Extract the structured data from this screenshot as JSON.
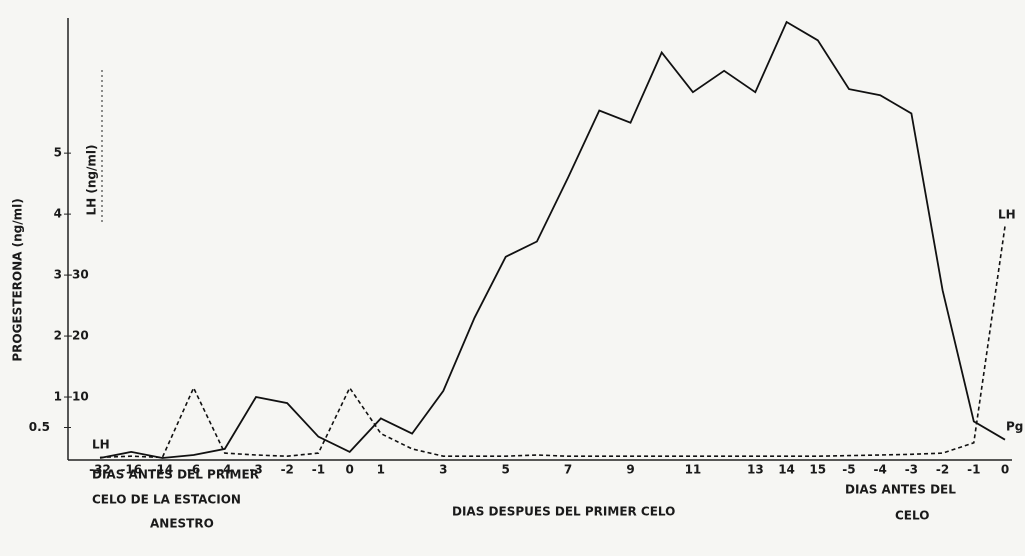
{
  "chart_data": {
    "type": "line",
    "y_label": "PROGESTERONA (ng/ml)",
    "y2_label": "LH (ng/ml)",
    "categories": [
      "-32",
      "-16",
      "-14",
      "-6",
      "-4",
      "-3",
      "-2",
      "-1",
      "0",
      "1",
      null,
      "3",
      null,
      "5",
      null,
      "7",
      null,
      "9",
      null,
      "11",
      null,
      "13",
      "14",
      "15",
      "-5",
      "-4",
      "-3",
      "-2",
      "-1",
      "0"
    ],
    "series": [
      {
        "name": "Pg",
        "color": "#111111",
        "dash": false,
        "values": [
          0,
          0.1,
          0,
          0.05,
          0.15,
          1.0,
          0.9,
          0.35,
          0.1,
          0.65,
          0.4,
          1.1,
          2.3,
          3.3,
          3.55,
          4.6,
          5.7,
          5.5,
          6.65,
          6.0,
          6.35,
          6.0,
          7.15,
          6.85,
          6.05,
          5.95,
          5.65,
          2.75,
          0.6,
          0.3
        ]
      },
      {
        "name": "LH",
        "color": "#111111",
        "dash": true,
        "axis": "y2",
        "values": [
          0.1,
          0.3,
          0.1,
          11.5,
          0.8,
          0.5,
          0.3,
          0.8,
          11.5,
          4,
          1.5,
          0.3,
          0.3,
          0.3,
          0.5,
          0.3,
          0.3,
          0.3,
          0.3,
          0.3,
          0.3,
          0.3,
          0.3,
          0.3,
          0.4,
          0.5,
          0.6,
          0.8,
          2.5,
          38
        ]
      }
    ],
    "ylim": [
      0,
      7.2
    ],
    "yticks": [
      0.5,
      1,
      2,
      3,
      4,
      5
    ],
    "y2lim": [
      0,
      72
    ],
    "y2ticks": [
      10,
      20,
      30
    ],
    "annotations": [
      "DIAS ANTES DEL PRIMER",
      "CELO DE LA ESTACION",
      "ANESTRO",
      "DIAS DESPUES DEL PRIMER CELO",
      "DIAS ANTES DEL",
      "CELO"
    ]
  }
}
